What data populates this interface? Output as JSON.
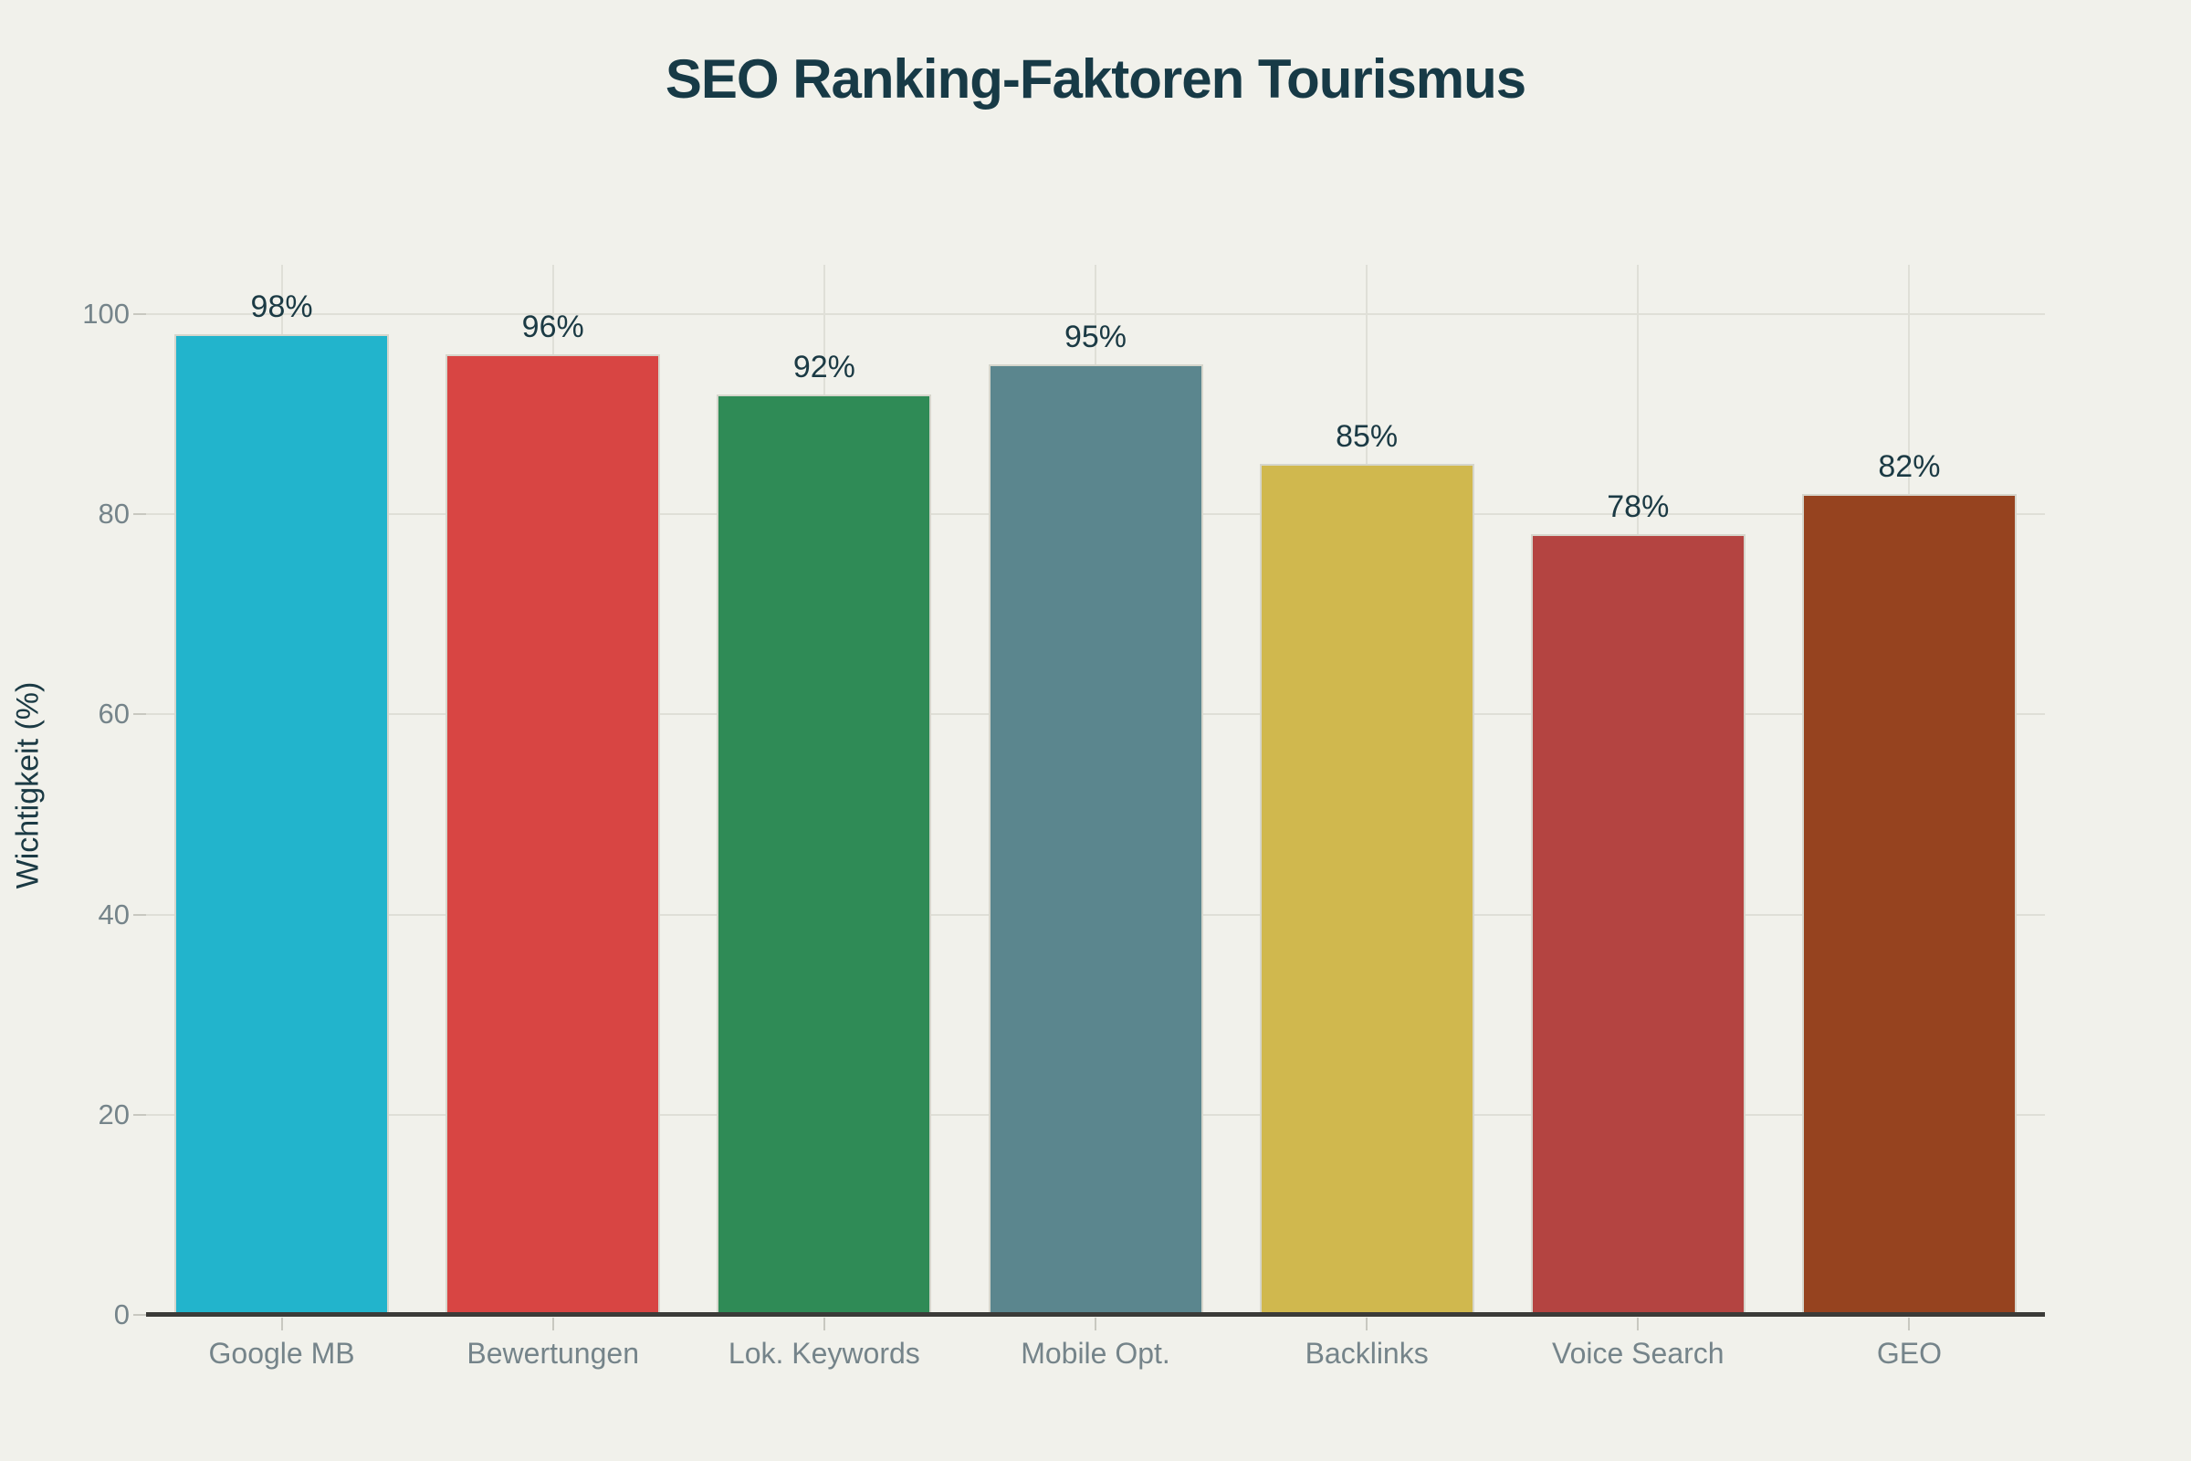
{
  "chart_data": {
    "type": "bar",
    "title": "SEO Ranking-Faktoren Tourismus",
    "ylabel": "Wichtigkeit (%)",
    "xlabel": "",
    "categories": [
      "Google MB",
      "Bewertungen",
      "Lok. Keywords",
      "Mobile Opt.",
      "Backlinks",
      "Voice Search",
      "GEO"
    ],
    "values": [
      98,
      96,
      92,
      95,
      85,
      78,
      82
    ],
    "value_labels": [
      "98%",
      "96%",
      "92%",
      "95%",
      "85%",
      "78%",
      "82%"
    ],
    "bar_colors": [
      "#22B4CC",
      "#D84543",
      "#2F8B56",
      "#5B868E",
      "#D0B84E",
      "#B44441",
      "#96431F"
    ],
    "y_ticks": [
      "0",
      "20",
      "40",
      "60",
      "80",
      "100"
    ],
    "ylim": [
      0,
      105
    ],
    "grid": true,
    "legend": false,
    "colors": {
      "background": "#F1F1EB",
      "title_text": "#173A46",
      "value_label_text": "#1B3A44",
      "tick_label_text": "#75848A",
      "axis_line": "#3B3B38",
      "gridline": "#DFDFD7",
      "tick_mark": "#C8C8C0",
      "bar_border": "#D6D6CC"
    }
  }
}
